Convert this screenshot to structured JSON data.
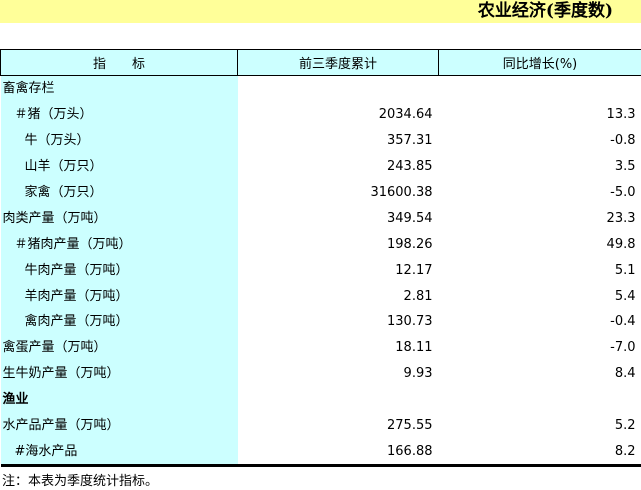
{
  "title": "农业经济(季度数)",
  "headers": [
    "指　　标",
    "前三季度累计",
    "同比增长(%)"
  ],
  "rows": [
    {
      "label": "畜禽存栏",
      "value": "",
      "growth": "",
      "indent": 0,
      "bold": false
    },
    {
      "label": "＃猪（万头）",
      "value": "2034.64",
      "growth": "13.3",
      "indent": 1
    },
    {
      "label": "牛（万头）",
      "value": "357.31",
      "growth": "-0.8",
      "indent": 2
    },
    {
      "label": "山羊（万只）",
      "value": "243.85",
      "growth": "3.5",
      "indent": 2
    },
    {
      "label": "家禽（万只）",
      "value": "31600.38",
      "growth": "-5.0",
      "indent": 2
    },
    {
      "label": "肉类产量（万吨）",
      "value": "349.54",
      "growth": "23.3",
      "indent": 0
    },
    {
      "label": "＃猪肉产量（万吨）",
      "value": "198.26",
      "growth": "49.8",
      "indent": 1
    },
    {
      "label": "牛肉产量（万吨）",
      "value": "12.17",
      "growth": "5.1",
      "indent": 2
    },
    {
      "label": "羊肉产量（万吨）",
      "value": "2.81",
      "growth": "5.4",
      "indent": 2
    },
    {
      "label": "禽肉产量（万吨）",
      "value": "130.73",
      "growth": "-0.4",
      "indent": 2
    },
    {
      "label": "禽蛋产量（万吨）",
      "value": "18.11",
      "growth": "-7.0",
      "indent": 0
    },
    {
      "label": "生牛奶产量（万吨）",
      "value": "9.93",
      "growth": "8.4",
      "indent": 0
    },
    {
      "label": "渔业",
      "value": "",
      "growth": "",
      "indent": 0,
      "bold": true
    },
    {
      "label": "水产品产量（万吨）",
      "value": "275.55",
      "growth": "5.2",
      "indent": 0
    },
    {
      "label": "#海水产品",
      "value": "166.88",
      "growth": "8.2",
      "indent": 1
    }
  ],
  "note": "注：本表为季度统计指标。",
  "colors": {
    "banner": "#ffff99",
    "label_column": "#ccffff"
  }
}
